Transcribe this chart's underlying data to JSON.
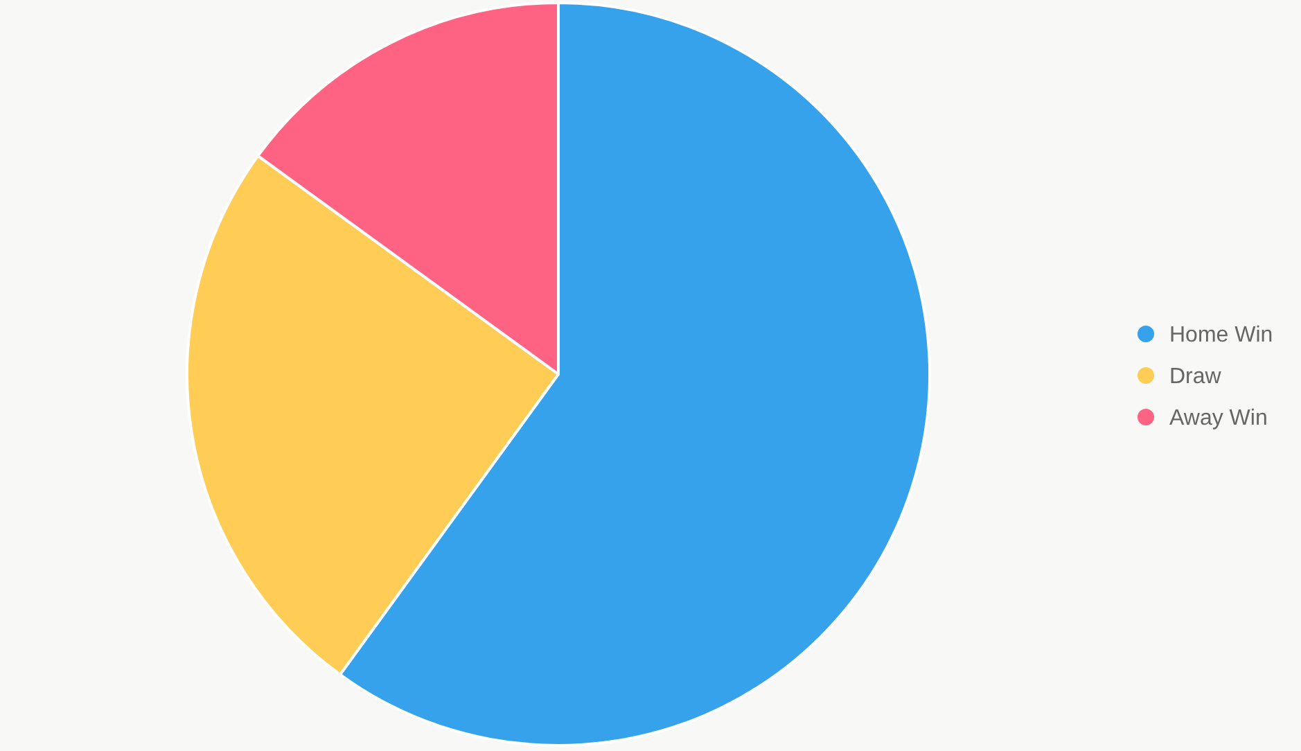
{
  "chart_data": {
    "type": "pie",
    "categories": [
      "Home Win",
      "Draw",
      "Away Win"
    ],
    "values": [
      60,
      25,
      15
    ],
    "colors": [
      "#36a2eb",
      "#ffcd56",
      "#ff6384"
    ],
    "legend": "right"
  }
}
